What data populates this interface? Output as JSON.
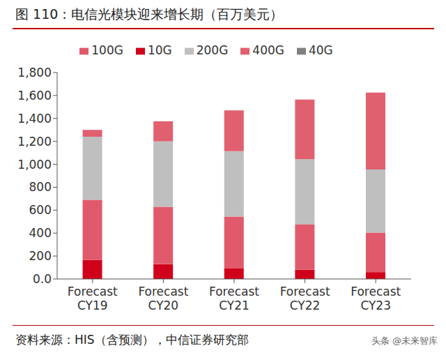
{
  "chart_data": {
    "type": "bar",
    "title": "图 110：电信光模块迎来增长期（百万美元）",
    "categories": [
      "Forecast CY19",
      "Forecast CY20",
      "Forecast CY21",
      "Forecast CY22",
      "Forecast CY23"
    ],
    "series": [
      {
        "name": "10G",
        "color": "#d0021b",
        "values": [
          165,
          130,
          95,
          80,
          60
        ]
      },
      {
        "name": "40G",
        "color": "#808080",
        "values": [
          0,
          0,
          0,
          0,
          0
        ]
      },
      {
        "name": "100G",
        "color": "#e05a6b",
        "values": [
          525,
          500,
          450,
          395,
          345
        ]
      },
      {
        "name": "200G",
        "color": "#bfbfbf",
        "values": [
          550,
          570,
          570,
          570,
          550
        ]
      },
      {
        "name": "400G",
        "color": "#e0606f",
        "values": [
          60,
          175,
          355,
          520,
          670
        ]
      }
    ],
    "ylim": [
      0,
      1800
    ],
    "yticks": [
      {
        "value": 0,
        "label": "0.0"
      },
      200,
      400,
      600,
      800,
      {
        "value": 1000,
        "label": "1,000"
      },
      {
        "value": 1200,
        "label": "1,200"
      },
      {
        "value": 1400,
        "label": "1,400"
      },
      {
        "value": 1600,
        "label": "1,600"
      },
      {
        "value": 1800,
        "label": "1,800"
      }
    ],
    "stacked": true,
    "grid": false,
    "legend": "top",
    "source": "资料来源：HIS（含预测），中信证券研究部",
    "watermark": "头条 @未来智库"
  }
}
